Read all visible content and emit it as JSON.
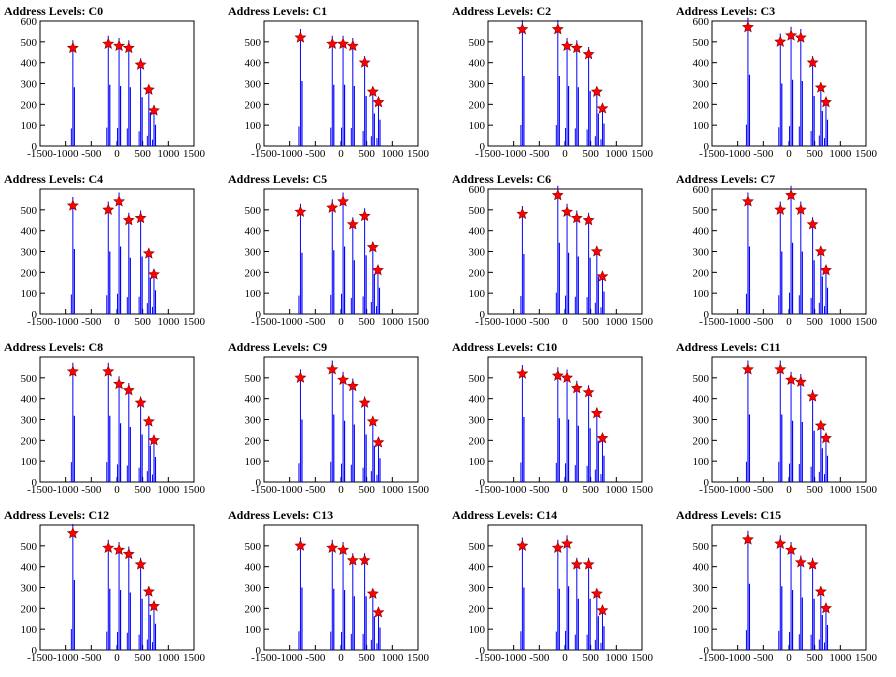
{
  "chart_data": [
    {
      "title": "Address Levels: C0",
      "yticks": [
        0,
        100,
        200,
        300,
        400,
        500,
        600
      ],
      "peaks": [
        [
          -860,
          470
        ],
        [
          -170,
          490
        ],
        [
          40,
          480
        ],
        [
          230,
          470
        ],
        [
          460,
          390
        ],
        [
          620,
          270
        ],
        [
          720,
          170
        ]
      ]
    },
    {
      "title": "Address Levels: C1",
      "yticks": [
        0,
        100,
        200,
        300,
        400,
        500
      ],
      "peaks": [
        [
          -790,
          520
        ],
        [
          -170,
          490
        ],
        [
          40,
          490
        ],
        [
          230,
          480
        ],
        [
          460,
          400
        ],
        [
          620,
          260
        ],
        [
          730,
          210
        ]
      ]
    },
    {
      "title": "Address Levels: C2",
      "yticks": [
        0,
        100,
        200,
        300,
        400,
        500
      ],
      "peaks": [
        [
          -830,
          560
        ],
        [
          -140,
          560
        ],
        [
          40,
          480
        ],
        [
          230,
          470
        ],
        [
          460,
          440
        ],
        [
          620,
          260
        ],
        [
          730,
          180
        ]
      ]
    },
    {
      "title": "Address Levels: C3",
      "yticks": [
        0,
        100,
        200,
        300,
        400,
        500,
        600
      ],
      "peaks": [
        [
          -800,
          570
        ],
        [
          -170,
          500
        ],
        [
          40,
          530
        ],
        [
          230,
          520
        ],
        [
          460,
          400
        ],
        [
          620,
          280
        ],
        [
          720,
          210
        ]
      ]
    },
    {
      "title": "Address Levels: C4",
      "yticks": [
        0,
        100,
        200,
        300,
        400,
        500
      ],
      "peaks": [
        [
          -860,
          520
        ],
        [
          -170,
          500
        ],
        [
          40,
          540
        ],
        [
          230,
          450
        ],
        [
          460,
          460
        ],
        [
          620,
          290
        ],
        [
          720,
          190
        ]
      ]
    },
    {
      "title": "Address Levels: C5",
      "yticks": [
        0,
        100,
        200,
        300,
        400,
        500
      ],
      "peaks": [
        [
          -790,
          490
        ],
        [
          -170,
          510
        ],
        [
          40,
          540
        ],
        [
          230,
          430
        ],
        [
          460,
          470
        ],
        [
          620,
          320
        ],
        [
          720,
          210
        ]
      ]
    },
    {
      "title": "Address Levels: C6",
      "yticks": [
        0,
        100,
        200,
        300,
        400,
        500,
        600
      ],
      "peaks": [
        [
          -830,
          480
        ],
        [
          -140,
          570
        ],
        [
          40,
          490
        ],
        [
          230,
          460
        ],
        [
          460,
          450
        ],
        [
          620,
          300
        ],
        [
          730,
          180
        ]
      ]
    },
    {
      "title": "Address Levels: C7",
      "yticks": [
        0,
        100,
        200,
        300,
        400,
        500,
        600
      ],
      "peaks": [
        [
          -800,
          540
        ],
        [
          -170,
          500
        ],
        [
          40,
          570
        ],
        [
          230,
          500
        ],
        [
          460,
          430
        ],
        [
          620,
          300
        ],
        [
          720,
          210
        ]
      ]
    },
    {
      "title": "Address Levels: C8",
      "yticks": [
        0,
        100,
        200,
        300,
        400,
        500
      ],
      "peaks": [
        [
          -860,
          530
        ],
        [
          -170,
          530
        ],
        [
          40,
          470
        ],
        [
          230,
          440
        ],
        [
          460,
          380
        ],
        [
          620,
          290
        ],
        [
          720,
          200
        ]
      ]
    },
    {
      "title": "Address Levels: C9",
      "yticks": [
        0,
        100,
        200,
        300,
        400,
        500
      ],
      "peaks": [
        [
          -790,
          500
        ],
        [
          -170,
          540
        ],
        [
          40,
          490
        ],
        [
          230,
          460
        ],
        [
          460,
          380
        ],
        [
          620,
          290
        ],
        [
          730,
          190
        ]
      ]
    },
    {
      "title": "Address Levels: C10",
      "yticks": [
        0,
        100,
        200,
        300,
        400,
        500
      ],
      "peaks": [
        [
          -830,
          520
        ],
        [
          -140,
          510
        ],
        [
          40,
          500
        ],
        [
          230,
          450
        ],
        [
          460,
          430
        ],
        [
          620,
          330
        ],
        [
          730,
          210
        ]
      ]
    },
    {
      "title": "Address Levels: C11",
      "yticks": [
        0,
        100,
        200,
        300,
        400,
        500
      ],
      "peaks": [
        [
          -800,
          540
        ],
        [
          -170,
          540
        ],
        [
          40,
          490
        ],
        [
          230,
          480
        ],
        [
          460,
          410
        ],
        [
          620,
          270
        ],
        [
          720,
          210
        ]
      ]
    },
    {
      "title": "Address Levels: C12",
      "yticks": [
        0,
        100,
        200,
        300,
        400,
        500
      ],
      "peaks": [
        [
          -860,
          560
        ],
        [
          -170,
          490
        ],
        [
          40,
          480
        ],
        [
          230,
          460
        ],
        [
          460,
          410
        ],
        [
          620,
          280
        ],
        [
          720,
          210
        ]
      ]
    },
    {
      "title": "Address Levels: C13",
      "yticks": [
        0,
        100,
        200,
        300,
        400,
        500
      ],
      "peaks": [
        [
          -790,
          500
        ],
        [
          -170,
          490
        ],
        [
          40,
          480
        ],
        [
          230,
          430
        ],
        [
          460,
          430
        ],
        [
          620,
          270
        ],
        [
          730,
          180
        ]
      ]
    },
    {
      "title": "Address Levels: C14",
      "yticks": [
        0,
        100,
        200,
        300,
        400,
        500
      ],
      "peaks": [
        [
          -830,
          500
        ],
        [
          -140,
          490
        ],
        [
          40,
          510
        ],
        [
          230,
          410
        ],
        [
          460,
          410
        ],
        [
          620,
          270
        ],
        [
          730,
          190
        ]
      ]
    },
    {
      "title": "Address Levels: C15",
      "yticks": [
        0,
        100,
        200,
        300,
        400,
        500
      ],
      "peaks": [
        [
          -800,
          530
        ],
        [
          -170,
          510
        ],
        [
          40,
          480
        ],
        [
          230,
          420
        ],
        [
          460,
          410
        ],
        [
          620,
          280
        ],
        [
          720,
          200
        ]
      ]
    }
  ],
  "xticks": [
    -1500,
    -1000,
    -500,
    0,
    500,
    1000,
    1500
  ],
  "xlim": [
    -1500,
    1500
  ],
  "colors": {
    "bars": "#0000ff",
    "markers": "#ff0000",
    "axes": "#000000"
  }
}
